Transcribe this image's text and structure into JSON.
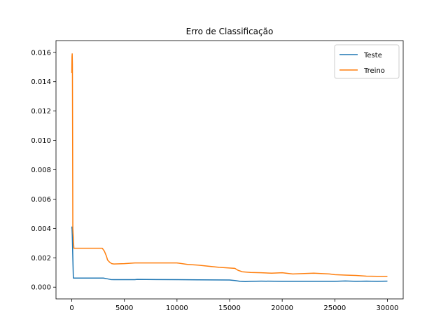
{
  "chart_data": {
    "type": "line",
    "title": "Erro de Classificação",
    "xlabel": "",
    "ylabel": "",
    "xlim": [
      -1500,
      31500
    ],
    "ylim": [
      -0.0008,
      0.0168
    ],
    "x_ticks": [
      0,
      5000,
      10000,
      15000,
      20000,
      25000,
      30000
    ],
    "x_tick_labels": [
      "0",
      "5000",
      "10000",
      "15000",
      "20000",
      "25000",
      "30000"
    ],
    "y_ticks": [
      0.0,
      0.002,
      0.004,
      0.006,
      0.008,
      0.01,
      0.012,
      0.014,
      0.016
    ],
    "y_tick_labels": [
      "0.000",
      "0.002",
      "0.004",
      "0.006",
      "0.008",
      "0.010",
      "0.012",
      "0.014",
      "0.016"
    ],
    "grid": false,
    "legend_position": "top-right",
    "series": [
      {
        "name": "Teste",
        "color": "#1f77b4",
        "x": [
          0,
          20,
          50,
          100,
          150,
          3000,
          3300,
          3700,
          4000,
          6000,
          6200,
          8000,
          10000,
          12000,
          15000,
          15500,
          16000,
          16500,
          17000,
          18000,
          20000,
          22000,
          24000,
          25000,
          26000,
          27000,
          28000,
          29000,
          30000
        ],
        "y": [
          0.004,
          0.0041,
          0.0035,
          0.002,
          0.00062,
          0.00062,
          0.00058,
          0.00052,
          0.00051,
          0.00051,
          0.00053,
          0.00052,
          0.00051,
          0.0005,
          0.00049,
          0.00045,
          0.0004,
          0.00038,
          0.0004,
          0.00041,
          0.0004,
          0.0004,
          0.0004,
          0.0004,
          0.00042,
          0.0004,
          0.00041,
          0.0004,
          0.00041
        ]
      },
      {
        "name": "Treino",
        "color": "#ff7f0e",
        "x": [
          0,
          20,
          40,
          60,
          80,
          100,
          200,
          2900,
          3100,
          3300,
          3400,
          3600,
          3800,
          4000,
          5000,
          6000,
          10000,
          11000,
          12000,
          14000,
          15500,
          15800,
          16200,
          17000,
          18000,
          19000,
          20000,
          21000,
          23000,
          24500,
          25000,
          26000,
          27000,
          28000,
          29000,
          30000
        ],
        "y": [
          0.0146,
          0.0157,
          0.0159,
          0.0152,
          0.01,
          0.004,
          0.00265,
          0.00265,
          0.00245,
          0.0021,
          0.00185,
          0.0017,
          0.0016,
          0.00158,
          0.0016,
          0.00165,
          0.00165,
          0.00155,
          0.0015,
          0.00135,
          0.00128,
          0.00115,
          0.00105,
          0.001,
          0.00098,
          0.00095,
          0.00098,
          0.0009,
          0.00095,
          0.0009,
          0.00085,
          0.00082,
          0.0008,
          0.00075,
          0.00074,
          0.00074
        ]
      }
    ]
  }
}
